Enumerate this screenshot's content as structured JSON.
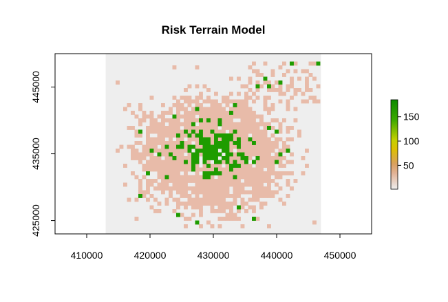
{
  "chart_data": {
    "type": "heatmap",
    "title": "Risk Terrain Model",
    "xlabel": "",
    "ylabel": "",
    "xlim": [
      405000,
      455000
    ],
    "ylim": [
      423000,
      450000
    ],
    "x_ticks": [
      410000,
      420000,
      430000,
      440000,
      450000
    ],
    "y_ticks": [
      425000,
      435000,
      445000
    ],
    "x_tick_labels": [
      "410000",
      "420000",
      "430000",
      "440000",
      "450000"
    ],
    "y_tick_labels": [
      "425000",
      "435000",
      "445000"
    ],
    "raster_extent": {
      "xmin": 413000,
      "xmax": 447000,
      "ymin": 423000,
      "ymax": 450000
    },
    "raster_background": "#eeeeee",
    "colorbar": {
      "min": 1,
      "max": 185,
      "ticks": [
        50,
        100,
        150
      ],
      "tick_labels": [
        "50",
        "100",
        "150"
      ],
      "colors": [
        "#eeeeee",
        "#e8bfa8",
        "#d99e6a",
        "#d6a13a",
        "#e0cd00",
        "#9cc800",
        "#1b9b00",
        "#0c8a00"
      ]
    },
    "low_risk_color": "#e8bba9",
    "high_risk_color": "#1e9c00",
    "high_risk_threshold": 150
  }
}
